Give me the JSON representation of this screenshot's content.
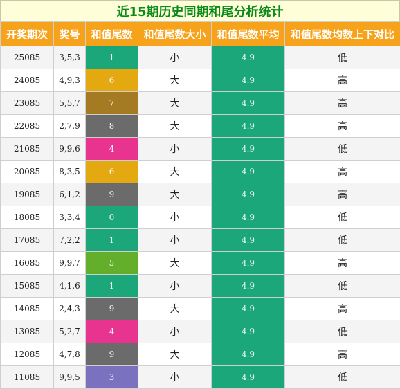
{
  "title": "近15期历史同期和尾分析统计",
  "headers": [
    "开奖期次",
    "奖号",
    "和值尾数",
    "和值尾数大小",
    "和值尾数平均",
    "和值尾数均数上下对比"
  ],
  "colors": {
    "0": "#1ba77a",
    "1": "#1ba77a",
    "3": "#7a72bf",
    "4": "#e8348e",
    "5": "#63ae2a",
    "6": "#e4a911",
    "7": "#a47b23",
    "8": "#6b6b6b",
    "9": "#6b6b6b"
  },
  "rows": [
    {
      "period": "25085",
      "nums": "3,5,3",
      "tail": "1",
      "size": "小",
      "avg": "4.9",
      "cmp": "低"
    },
    {
      "period": "24085",
      "nums": "4,9,3",
      "tail": "6",
      "size": "大",
      "avg": "4.9",
      "cmp": "高"
    },
    {
      "period": "23085",
      "nums": "5,5,7",
      "tail": "7",
      "size": "大",
      "avg": "4.9",
      "cmp": "高"
    },
    {
      "period": "22085",
      "nums": "2,7,9",
      "tail": "8",
      "size": "大",
      "avg": "4.9",
      "cmp": "高"
    },
    {
      "period": "21085",
      "nums": "9,9,6",
      "tail": "4",
      "size": "小",
      "avg": "4.9",
      "cmp": "低"
    },
    {
      "period": "20085",
      "nums": "8,3,5",
      "tail": "6",
      "size": "大",
      "avg": "4.9",
      "cmp": "高"
    },
    {
      "period": "19085",
      "nums": "6,1,2",
      "tail": "9",
      "size": "大",
      "avg": "4.9",
      "cmp": "高"
    },
    {
      "period": "18085",
      "nums": "3,3,4",
      "tail": "0",
      "size": "小",
      "avg": "4.9",
      "cmp": "低"
    },
    {
      "period": "17085",
      "nums": "7,2,2",
      "tail": "1",
      "size": "小",
      "avg": "4.9",
      "cmp": "低"
    },
    {
      "period": "16085",
      "nums": "9,9,7",
      "tail": "5",
      "size": "大",
      "avg": "4.9",
      "cmp": "高"
    },
    {
      "period": "15085",
      "nums": "4,1,6",
      "tail": "1",
      "size": "小",
      "avg": "4.9",
      "cmp": "低"
    },
    {
      "period": "14085",
      "nums": "2,4,3",
      "tail": "9",
      "size": "大",
      "avg": "4.9",
      "cmp": "高"
    },
    {
      "period": "13085",
      "nums": "5,2,7",
      "tail": "4",
      "size": "小",
      "avg": "4.9",
      "cmp": "低"
    },
    {
      "period": "12085",
      "nums": "4,7,8",
      "tail": "9",
      "size": "大",
      "avg": "4.9",
      "cmp": "高"
    },
    {
      "period": "11085",
      "nums": "9,9,5",
      "tail": "3",
      "size": "小",
      "avg": "4.9",
      "cmp": "低"
    }
  ]
}
